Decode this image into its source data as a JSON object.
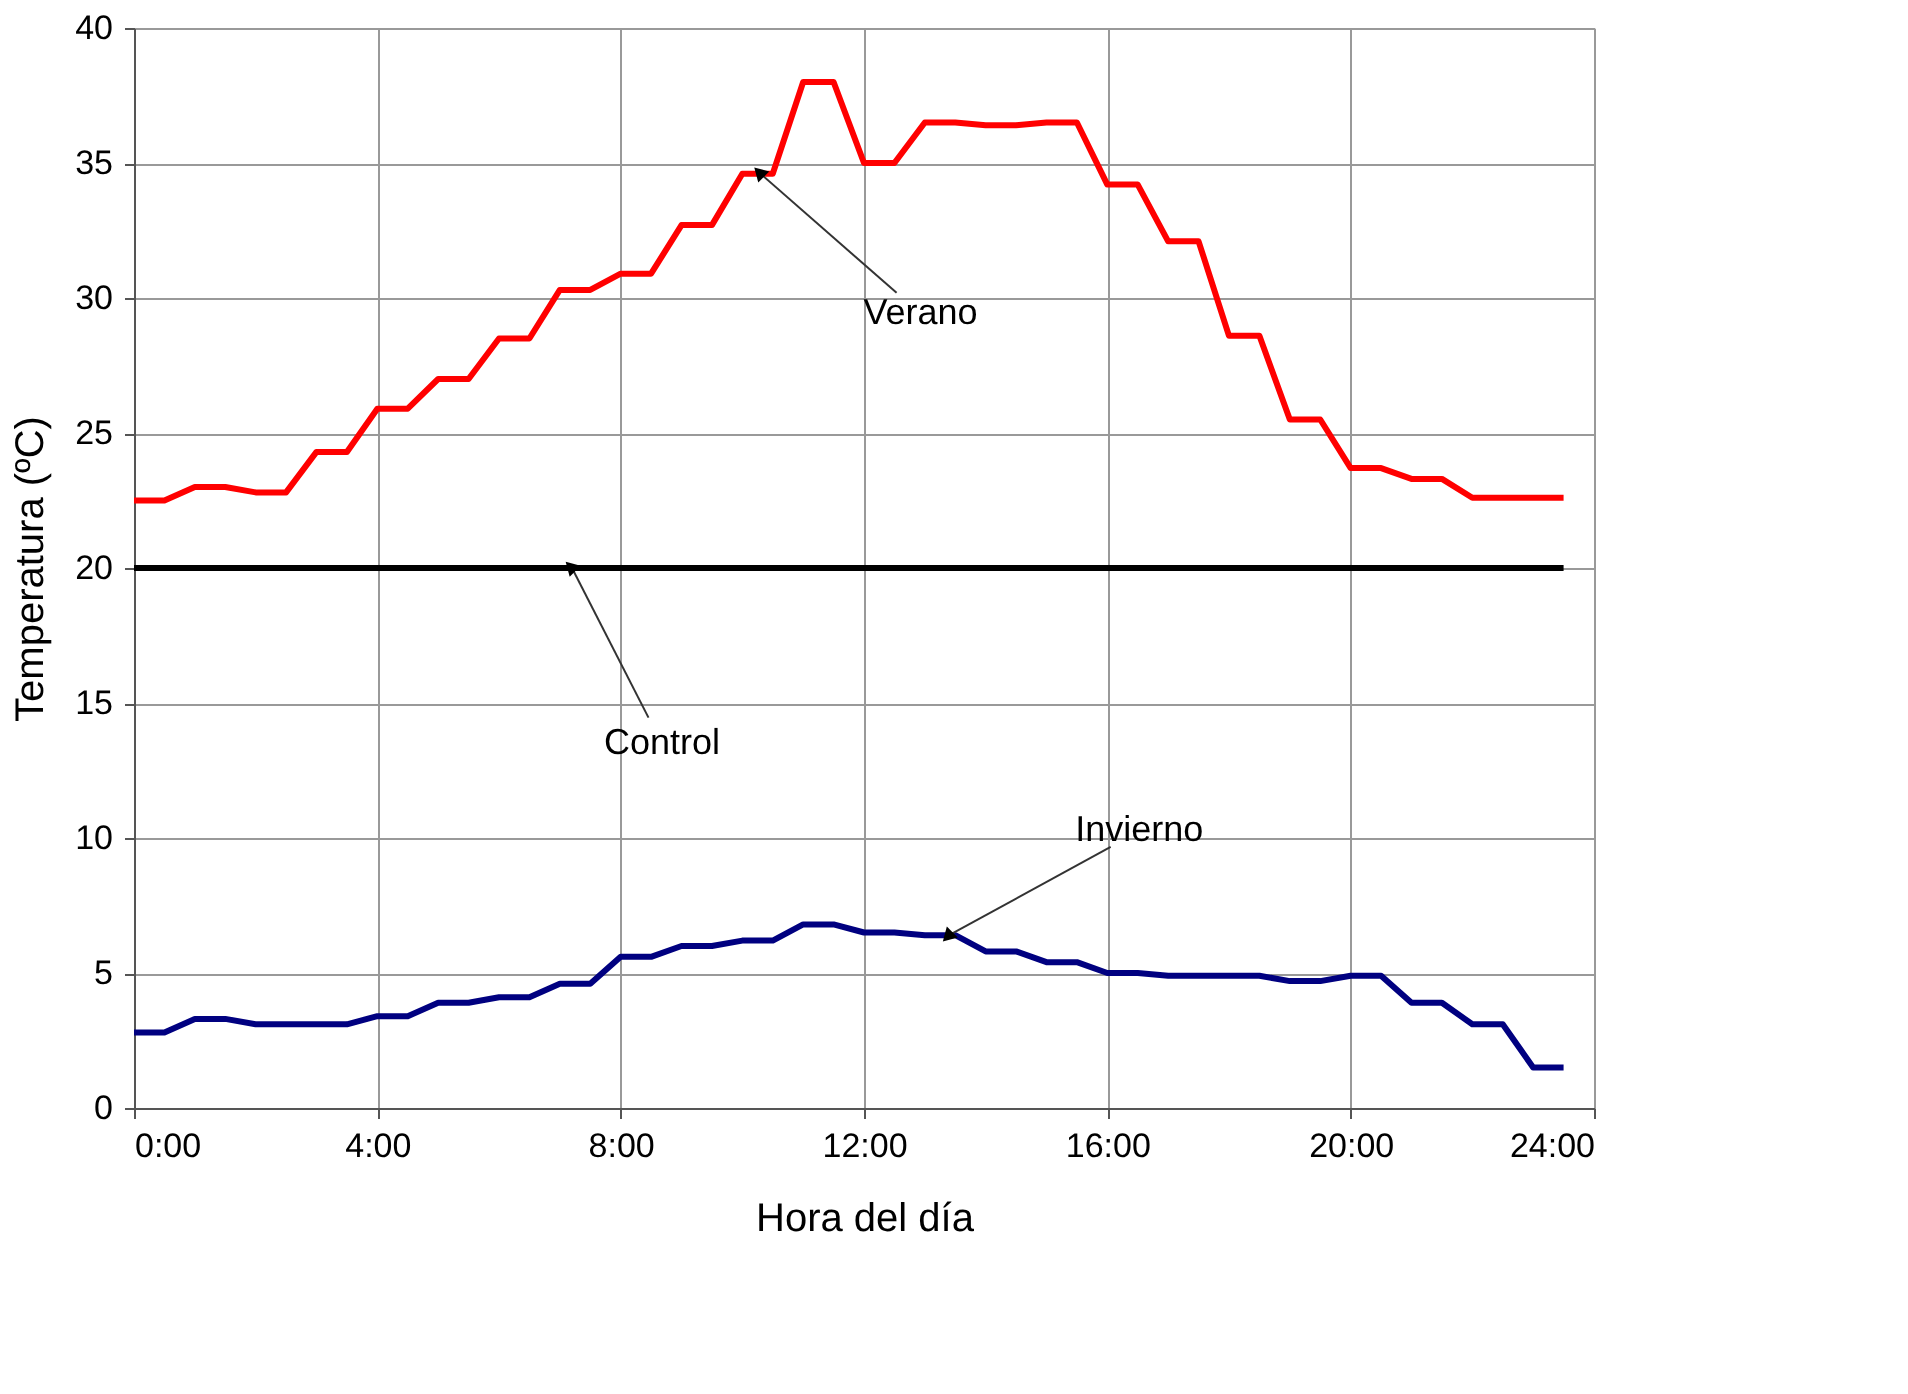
{
  "chart_data": {
    "type": "line",
    "xlabel": "Hora del día",
    "ylabel": "Temperatura (ºC)",
    "x": [
      0,
      0.5,
      1,
      1.5,
      2,
      2.5,
      3,
      3.5,
      4,
      4.5,
      5,
      5.5,
      6,
      6.5,
      7,
      7.5,
      8,
      8.5,
      9,
      9.5,
      10,
      10.5,
      11,
      11.5,
      12,
      12.5,
      13,
      13.5,
      14,
      14.5,
      15,
      15.5,
      16,
      16.5,
      17,
      17.5,
      18,
      18.5,
      19,
      19.5,
      20,
      20.5,
      21,
      21.5,
      22,
      22.5,
      23,
      23.5
    ],
    "series": [
      {
        "color": "#ff0000",
        "values": [
          22.5,
          22.5,
          23.0,
          23.0,
          22.8,
          22.8,
          24.3,
          24.3,
          25.9,
          25.9,
          27.0,
          27.0,
          28.5,
          28.5,
          30.3,
          30.3,
          30.9,
          30.9,
          32.7,
          32.7,
          34.6,
          34.6,
          38.0,
          38.0,
          35.0,
          35.0,
          36.5,
          36.5,
          36.4,
          36.4,
          36.5,
          36.5,
          34.2,
          34.2,
          32.1,
          32.1,
          28.6,
          28.6,
          25.5,
          25.5,
          23.7,
          23.7,
          23.3,
          23.3,
          22.6,
          22.6,
          22.6,
          22.6
        ]
      },
      {
        "color": "#000000",
        "x": [
          0,
          23.5
        ],
        "values": [
          20,
          20
        ]
      },
      {
        "color": "#000080",
        "values": [
          2.8,
          2.8,
          3.3,
          3.3,
          3.1,
          3.1,
          3.1,
          3.1,
          3.4,
          3.4,
          3.9,
          3.9,
          4.1,
          4.1,
          4.6,
          4.6,
          5.6,
          5.6,
          6.0,
          6.0,
          6.2,
          6.2,
          6.8,
          6.8,
          6.5,
          6.5,
          6.4,
          6.4,
          5.8,
          5.8,
          5.4,
          5.4,
          5.0,
          5.0,
          4.9,
          4.9,
          4.9,
          4.9,
          4.7,
          4.7,
          4.9,
          4.9,
          3.9,
          3.9,
          3.1,
          3.1,
          1.5,
          1.5
        ]
      }
    ],
    "annotations": [
      {
        "text": "Verano",
        "x": 10.3,
        "y": 34.6
      },
      {
        "text": "Control",
        "x": 7.2,
        "y": 20
      },
      {
        "text": "Invierno",
        "x": 13.4,
        "y": 6.4
      }
    ],
    "xlim": [
      0,
      24
    ],
    "xticks": [
      {
        "value": 0,
        "label": "0:00"
      },
      {
        "value": 4,
        "label": "4:00"
      },
      {
        "value": 8,
        "label": "8:00"
      },
      {
        "value": 12,
        "label": "12:00"
      },
      {
        "value": 16,
        "label": "16:00"
      },
      {
        "value": 20,
        "label": "20:00"
      },
      {
        "value": 24,
        "label": "24:00"
      }
    ],
    "ylim": [
      0,
      40
    ],
    "yticks": [
      0,
      5,
      10,
      15,
      20,
      25,
      30,
      35,
      40
    ],
    "grid": true,
    "marker": "none",
    "line_style": "solid"
  }
}
